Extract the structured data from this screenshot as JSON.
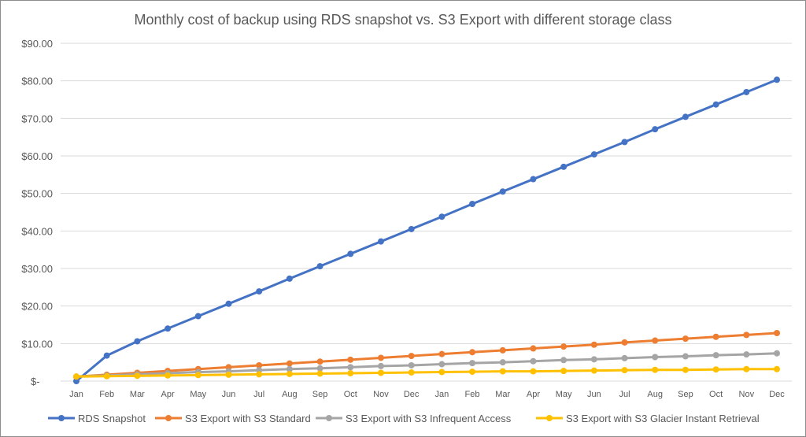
{
  "chart_data": {
    "type": "line",
    "title": "Monthly cost of backup using RDS snapshot vs. S3 Export with different storage class",
    "categories": [
      "Jan",
      "Feb",
      "Mar",
      "Apr",
      "May",
      "Jun",
      "Jul",
      "Aug",
      "Sep",
      "Oct",
      "Nov",
      "Dec",
      "Jan",
      "Feb",
      "Mar",
      "Apr",
      "May",
      "Jun",
      "Jul",
      "Aug",
      "Sep",
      "Oct",
      "Nov",
      "Dec"
    ],
    "ylim": [
      0,
      90
    ],
    "yticks": [
      "$-",
      "$10.00",
      "$20.00",
      "$30.00",
      "$40.00",
      "$50.00",
      "$60.00",
      "$70.00",
      "$80.00",
      "$90.00"
    ],
    "grid": true,
    "legend": "bottom",
    "series": [
      {
        "name": "RDS Snapshot",
        "color": "#4472C4",
        "values": [
          0,
          6.8,
          10.6,
          14.0,
          17.3,
          20.6,
          23.9,
          27.3,
          30.6,
          33.9,
          37.2,
          40.5,
          43.8,
          47.2,
          50.5,
          53.8,
          57.1,
          60.4,
          63.7,
          67.1,
          70.4,
          73.7,
          77.0,
          80.3
        ]
      },
      {
        "name": "S3 Export with S3 Standard",
        "color": "#ED7D31",
        "values": [
          1.2,
          1.7,
          2.2,
          2.7,
          3.2,
          3.7,
          4.2,
          4.7,
          5.2,
          5.7,
          6.2,
          6.7,
          7.2,
          7.7,
          8.2,
          8.7,
          9.2,
          9.7,
          10.3,
          10.8,
          11.3,
          11.8,
          12.3,
          12.8
        ]
      },
      {
        "name": "S3 Export with S3 Infrequent Access",
        "color": "#A5A5A5",
        "values": [
          1.2,
          1.5,
          1.8,
          2.1,
          2.4,
          2.6,
          2.9,
          3.2,
          3.4,
          3.7,
          4.0,
          4.2,
          4.5,
          4.8,
          5.0,
          5.3,
          5.6,
          5.8,
          6.1,
          6.4,
          6.6,
          6.9,
          7.1,
          7.4
        ]
      },
      {
        "name": "S3 Export with S3 Glacier Instant Retrieval",
        "color": "#FFC000",
        "values": [
          1.2,
          1.3,
          1.4,
          1.5,
          1.6,
          1.7,
          1.8,
          1.9,
          2.0,
          2.1,
          2.2,
          2.3,
          2.4,
          2.5,
          2.6,
          2.6,
          2.7,
          2.8,
          2.9,
          3.0,
          3.0,
          3.1,
          3.2,
          3.2
        ]
      }
    ]
  }
}
